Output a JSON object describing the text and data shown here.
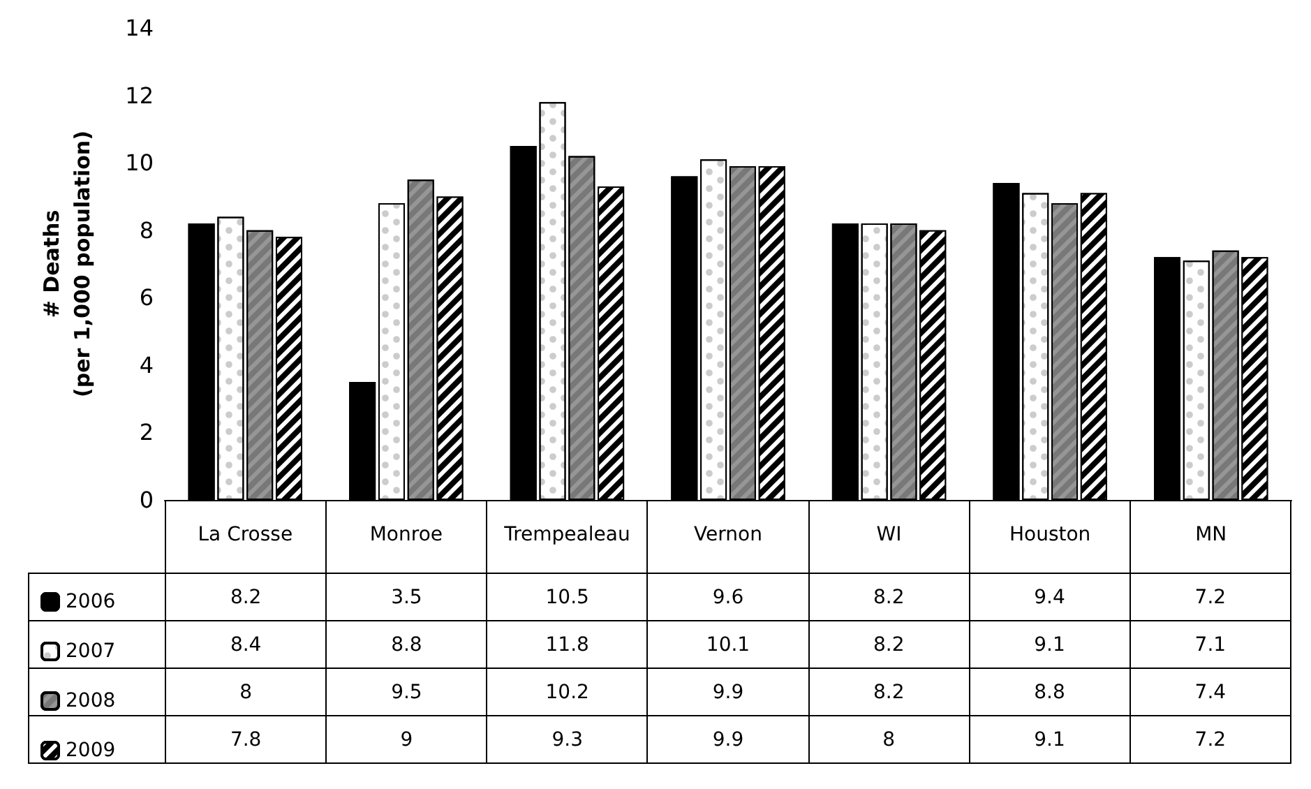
{
  "chart_data": {
    "type": "bar",
    "ylabel": "# Deaths\n(per 1,000 population)",
    "categories": [
      "La Crosse",
      "Monroe",
      "Trempealeau",
      "Vernon",
      "WI",
      "Houston",
      "MN"
    ],
    "series": [
      {
        "name": "2006",
        "color": "#000000",
        "values": [
          8.2,
          3.5,
          10.5,
          9.6,
          8.2,
          9.4,
          7.2
        ]
      },
      {
        "name": "2007",
        "color": "#ffffff",
        "values": [
          8.4,
          8.8,
          11.8,
          10.1,
          8.2,
          9.1,
          7.1
        ]
      },
      {
        "name": "2008",
        "color": "#969696",
        "values": [
          8,
          9.5,
          10.2,
          9.9,
          8.2,
          8.8,
          7.4
        ]
      },
      {
        "name": "2009",
        "color": "#000000",
        "values": [
          7.8,
          9,
          9.3,
          9.9,
          8,
          9.1,
          7.2
        ]
      }
    ],
    "ylim": [
      0,
      14
    ],
    "yticks": [
      0,
      2,
      4,
      6,
      8,
      10,
      12,
      14
    ],
    "grid": false,
    "legend": "bottom left",
    "data_labels": true
  }
}
